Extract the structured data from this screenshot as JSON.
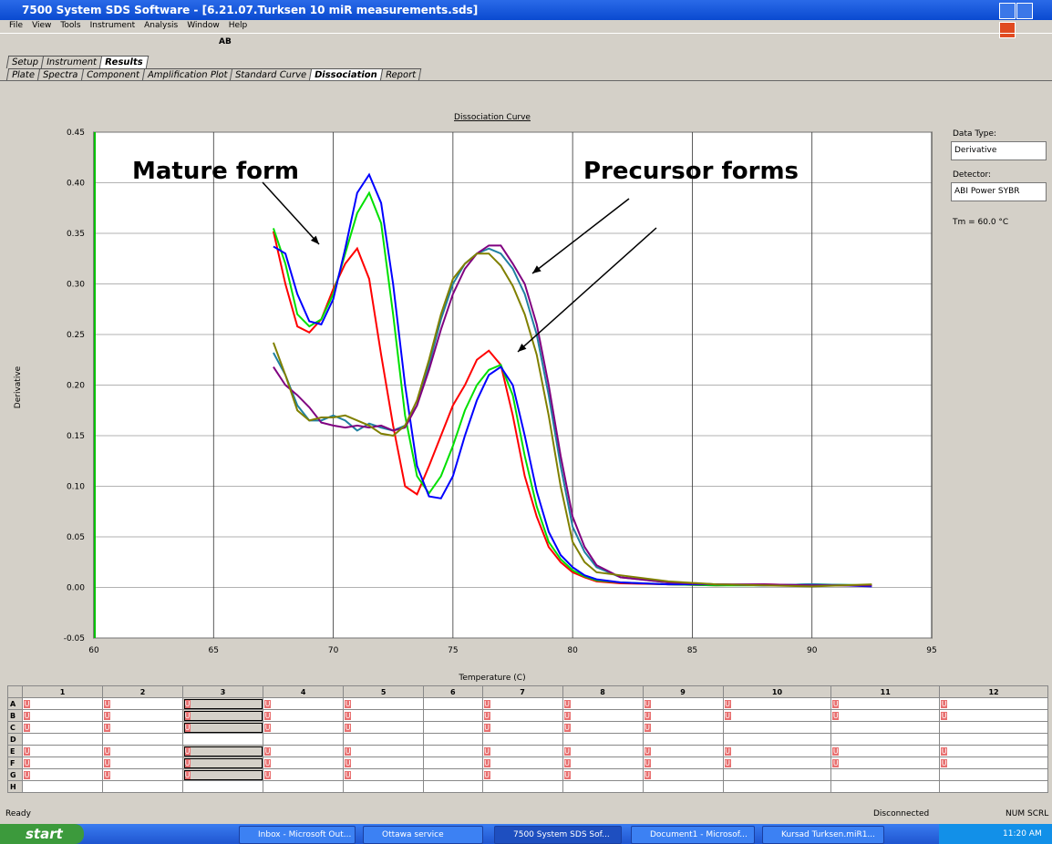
{
  "window": {
    "title": "7500 System SDS Software - [6.21.07.Turksen 10 miR measurements.sds]"
  },
  "menu": [
    "File",
    "View",
    "Tools",
    "Instrument",
    "Analysis",
    "Window",
    "Help"
  ],
  "toolbar": {
    "ab": "AB"
  },
  "tabs": [
    "Setup",
    "Instrument",
    "Results"
  ],
  "subtabs": [
    "Plate",
    "Spectra",
    "Component",
    "Amplification Plot",
    "Standard Curve",
    "Dissociation",
    "Report"
  ],
  "chart_data": {
    "type": "line",
    "title": "Dissociation Curve",
    "x_label": "Temperature (C)",
    "y_label": "Derivative",
    "annotations": [
      "Mature form",
      "Precursor forms"
    ],
    "x": [
      67.5,
      68,
      68.5,
      69,
      69.5,
      70,
      70.5,
      71,
      71.5,
      72,
      72.5,
      73,
      73.5,
      74,
      74.5,
      75,
      75.5,
      76,
      76.5,
      77,
      77.5,
      78,
      78.5,
      79,
      79.5,
      80,
      80.5,
      81,
      82,
      84,
      86,
      88,
      90,
      92.5
    ],
    "series": [
      {
        "color": "#ff0000",
        "values": [
          0.352,
          0.3,
          0.258,
          0.252,
          0.265,
          0.295,
          0.32,
          0.335,
          0.305,
          0.23,
          0.16,
          0.1,
          0.092,
          0.12,
          0.15,
          0.18,
          0.2,
          0.225,
          0.234,
          0.22,
          0.17,
          0.11,
          0.07,
          0.04,
          0.025,
          0.015,
          0.01,
          0.006,
          0.004,
          0.003,
          0.002,
          0.003,
          0.002,
          0.002
        ]
      },
      {
        "color": "#00e000",
        "values": [
          0.355,
          0.32,
          0.27,
          0.258,
          0.265,
          0.29,
          0.33,
          0.37,
          0.39,
          0.36,
          0.27,
          0.17,
          0.11,
          0.093,
          0.11,
          0.14,
          0.175,
          0.2,
          0.215,
          0.22,
          0.19,
          0.13,
          0.08,
          0.045,
          0.028,
          0.017,
          0.011,
          0.007,
          0.005,
          0.003,
          0.002,
          0.002,
          0.003,
          0.002
        ]
      },
      {
        "color": "#0000ff",
        "values": [
          0.337,
          0.33,
          0.29,
          0.263,
          0.26,
          0.285,
          0.335,
          0.39,
          0.408,
          0.38,
          0.3,
          0.2,
          0.12,
          0.09,
          0.088,
          0.11,
          0.15,
          0.185,
          0.21,
          0.218,
          0.2,
          0.15,
          0.095,
          0.055,
          0.032,
          0.02,
          0.012,
          0.008,
          0.005,
          0.003,
          0.003,
          0.002,
          0.003,
          0.001
        ]
      },
      {
        "color": "#2080a0",
        "values": [
          0.232,
          0.21,
          0.18,
          0.165,
          0.165,
          0.17,
          0.165,
          0.155,
          0.162,
          0.158,
          0.155,
          0.16,
          0.18,
          0.22,
          0.265,
          0.3,
          0.32,
          0.33,
          0.335,
          0.33,
          0.315,
          0.29,
          0.25,
          0.19,
          0.12,
          0.06,
          0.035,
          0.02,
          0.01,
          0.005,
          0.003,
          0.002,
          0.003,
          0.002
        ]
      },
      {
        "color": "#800080",
        "values": [
          0.218,
          0.2,
          0.19,
          0.178,
          0.163,
          0.16,
          0.158,
          0.16,
          0.158,
          0.16,
          0.155,
          0.158,
          0.18,
          0.215,
          0.255,
          0.29,
          0.315,
          0.33,
          0.338,
          0.338,
          0.32,
          0.3,
          0.26,
          0.2,
          0.13,
          0.07,
          0.04,
          0.022,
          0.01,
          0.005,
          0.003,
          0.003,
          0.002,
          0.002
        ]
      },
      {
        "color": "#808000",
        "values": [
          0.242,
          0.21,
          0.175,
          0.165,
          0.168,
          0.168,
          0.17,
          0.165,
          0.16,
          0.152,
          0.15,
          0.16,
          0.185,
          0.225,
          0.27,
          0.305,
          0.32,
          0.33,
          0.33,
          0.318,
          0.298,
          0.27,
          0.23,
          0.17,
          0.1,
          0.045,
          0.025,
          0.015,
          0.012,
          0.006,
          0.003,
          0.002,
          0.001,
          0.003
        ]
      }
    ],
    "xlim": [
      60,
      95
    ],
    "ylim": [
      -0.05,
      0.45
    ],
    "xticks": [
      60,
      65,
      70,
      75,
      80,
      85,
      90,
      95
    ],
    "yticks": [
      -0.05,
      {
        "value": 0,
        "label": "0.00"
      },
      0.05,
      {
        "value": 0.1,
        "label": "0.10"
      },
      0.15,
      {
        "value": 0.2,
        "label": "0.20"
      },
      0.25,
      {
        "value": 0.3,
        "label": "0.30"
      },
      0.35,
      {
        "value": 0.4,
        "label": "0.40"
      },
      0.45
    ],
    "grid": true
  },
  "side_panel": {
    "data_type_label": "Data Type:",
    "data_type": "Derivative",
    "detector_label": "Detector:",
    "detector": "ABI Power SYBR",
    "tm": "Tm = 60.0 °C"
  },
  "plate": {
    "columns": [
      "1",
      "2",
      "3",
      "4",
      "5",
      "6",
      "7",
      "8",
      "9",
      "10",
      "11",
      "12"
    ],
    "rows": [
      {
        "label": "A",
        "cells": [
          "U",
          "U",
          "U",
          "U",
          "U",
          null,
          "U",
          "U",
          "U",
          "U",
          "U",
          "U"
        ]
      },
      {
        "label": "B",
        "cells": [
          "U",
          "U",
          "U",
          "U",
          "U",
          null,
          "U",
          "U",
          "U",
          "U",
          "U",
          "U"
        ]
      },
      {
        "label": "C",
        "cells": [
          "U",
          "U",
          "U",
          "U",
          "U",
          null,
          "U",
          "U",
          "U",
          null,
          null,
          null
        ]
      },
      {
        "label": "D",
        "cells": [
          null,
          null,
          null,
          null,
          null,
          null,
          null,
          null,
          null,
          null,
          null,
          null
        ]
      },
      {
        "label": "E",
        "cells": [
          "U",
          "U",
          "U",
          "U",
          "U",
          null,
          "U",
          "U",
          "U",
          "U",
          "U",
          "U"
        ]
      },
      {
        "label": "F",
        "cells": [
          "U",
          "U",
          "U",
          "U",
          "U",
          null,
          "U",
          "U",
          "U",
          "U",
          "U",
          "U"
        ]
      },
      {
        "label": "G",
        "cells": [
          "U",
          "U",
          "U",
          "U",
          "U",
          null,
          "U",
          "U",
          "U",
          null,
          null,
          null
        ]
      },
      {
        "label": "H",
        "cells": [
          null,
          null,
          null,
          null,
          null,
          null,
          null,
          null,
          null,
          null,
          null,
          null
        ]
      }
    ]
  },
  "status": {
    "text": "Ready",
    "connection": "Disconnected",
    "num": "NUM",
    "scrl": "SCRL"
  },
  "taskbar": {
    "start": "start",
    "items": [
      "Inbox - Microsoft Out...",
      "Ottawa service",
      "7500 System SDS Sof...",
      "Document1 - Microsof...",
      "Kursad Turksen.miR1..."
    ],
    "clock": "11:20 AM"
  }
}
